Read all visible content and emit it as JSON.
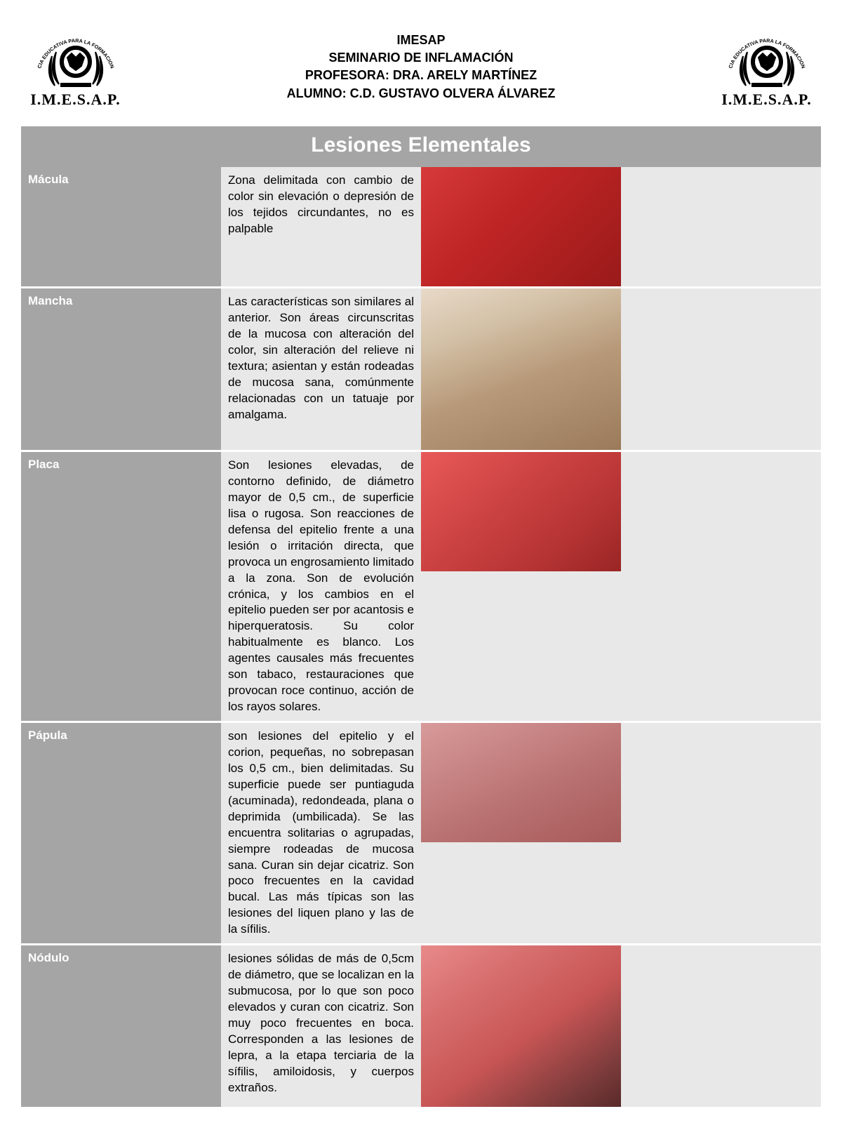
{
  "header": {
    "org": "IMESAP",
    "seminar": "SEMINARIO DE INFLAMACIÓN",
    "professor": "PROFESORA: DRA. ARELY MARTÍNEZ",
    "student": "ALUMNO: C.D. GUSTAVO OLVERA ÁLVAREZ",
    "logo_text": "I.M.E.S.A.P.",
    "logo_arc_text": "EXCELENCIA EDUCATIVA PARA LA FORMACION HUMANA"
  },
  "table": {
    "title": "Lesiones Elementales",
    "title_bg": "#a5a5a5",
    "title_color": "#ffffff",
    "term_bg": "#a5a5a5",
    "term_color": "#ffffff",
    "desc_bg": "#e8e8e8",
    "desc_color": "#000000",
    "rows": [
      {
        "term": "Mácula",
        "desc": "Zona delimitada con cambio de color sin elevación o depresión de los tejidos circundantes, no es palpable",
        "img_label": "clinical-photo-macula",
        "img_bg": "linear-gradient(135deg,#d63a3a 0%,#c02525 40%,#9a1a1a 100%)",
        "tall": false
      },
      {
        "term": "Mancha",
        "desc": "Las características son similares al anterior. Son áreas circunscritas de la mucosa con alteración del color, sin alteración del relieve ni textura; asientan y están rodeadas de mucosa sana, comúnmente relacionadas con un tatuaje por amalgama.",
        "img_label": "clinical-photo-mancha",
        "img_bg": "linear-gradient(160deg,#e8d9c8 0%,#d4c2a8 25%,#b89a7a 55%,#9a7a5a 100%)",
        "tall": true
      },
      {
        "term": "Placa",
        "desc": "Son lesiones elevadas, de contorno definido, de diámetro mayor de 0,5 cm., de superficie lisa o rugosa. Son reacciones de defensa del epitelio frente a una lesión o irritación directa, que provoca un engrosamiento limitado a la zona. Son de evolución crónica, y los cambios en el epitelio pueden ser por acantosis e hiperqueratosis. Su color habitualmente es blanco. Los agentes causales más frecuentes son tabaco, restauraciones que provocan roce continuo, acción de los rayos solares.",
        "img_label": "clinical-photo-placa",
        "img_bg": "linear-gradient(140deg,#e85a5a 0%,#d04545 35%,#b83535 70%,#9a2525 100%)",
        "tall": false
      },
      {
        "term": "Pápula",
        "desc": "son lesiones del epitelio y el corion, pequeñas, no sobrepasan los 0,5 cm., bien delimitadas. Su superficie puede ser puntiaguda (acuminada), redondeada, plana o deprimida (umbilicada). Se las encuentra solitarias o agrupadas, siempre rodeadas de mucosa sana. Curan sin dejar cicatriz. Son poco frecuentes en la cavidad bucal. Las más típicas son las lesiones del liquen plano y las de la sífilis.",
        "img_label": "clinical-photo-papula",
        "img_bg": "linear-gradient(155deg,#d89a9a 0%,#c88585 30%,#b87070 60%,#a85a5a 100%)",
        "tall": false
      },
      {
        "term": "Nódulo",
        "desc": "lesiones sólidas de más de 0,5cm de diámetro, que se localizan en la submucosa, por lo que son poco elevados y curan con cicatriz. Son muy poco frecuentes en boca. Corresponden a las lesiones de lepra, a la etapa terciaria de la sífilis, amiloidosis, y cuerpos extraños.",
        "img_label": "clinical-photo-nodulo",
        "img_bg": "linear-gradient(145deg,#e88a8a 0%,#d87070 25%,#c85555 55%,#7a3a3a 85%,#5a2a2a 100%)",
        "tall": true
      }
    ]
  }
}
